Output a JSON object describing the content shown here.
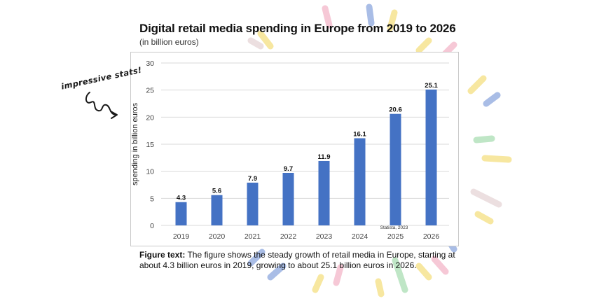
{
  "title": "Digital retail media spending in Europe from 2019 to 2026",
  "subtitle": "(in billion euros)",
  "annotation": "impressive stats!",
  "caption": {
    "label": "Figure text:",
    "text": " The figure shows the steady growth of retail media in Europe, starting at about 4.3 billion euros in 2019, growing to about 25.1 billion euros in 2026."
  },
  "colors": {
    "bar": "#4472c4",
    "grid": "#d9d9d9",
    "confetti": [
      "#f7e7a0",
      "#a9bde6",
      "#f6c8d6",
      "#bfe6c6",
      "#ecdfe0"
    ]
  },
  "chart_data": {
    "type": "bar",
    "title": "Digital retail media spending in Europe from 2019 to 2026",
    "subtitle": "(in billion euros)",
    "xlabel": "",
    "ylabel": "spending in billion euros",
    "categories": [
      "2019",
      "2020",
      "2021",
      "2022",
      "2023",
      "2024",
      "2025",
      "2026"
    ],
    "values": [
      4.3,
      5.6,
      7.9,
      9.7,
      11.9,
      16.1,
      20.6,
      25.1
    ],
    "data_labels": [
      "4.3",
      "5.6",
      "7.9",
      "9.7",
      "11.9",
      "16.1",
      "20.6",
      "25.1"
    ],
    "ylim": [
      0,
      30
    ],
    "yticks": [
      0,
      5,
      10,
      15,
      20,
      25,
      30
    ],
    "grid": true,
    "legend": "none",
    "source": "Statista, 2023"
  }
}
